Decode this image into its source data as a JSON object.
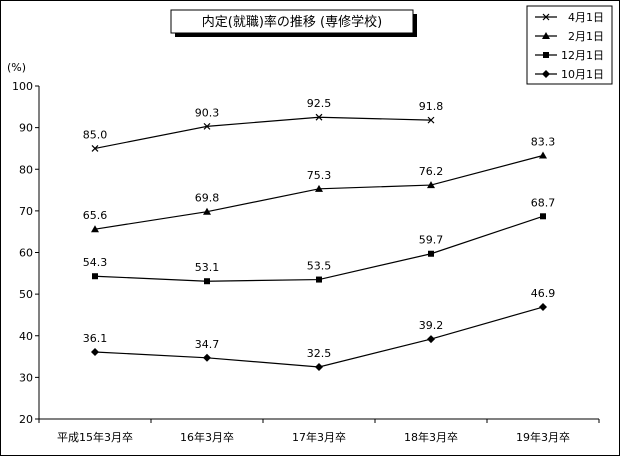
{
  "chart_data": {
    "type": "line",
    "title": "内定(就職)率の推移 (専修学校)",
    "y_unit": "(%)",
    "categories": [
      "平成15年3月卒",
      "16年3月卒",
      "17年3月卒",
      "18年3月卒",
      "19年3月卒"
    ],
    "ylim": [
      20,
      100
    ],
    "yticks": [
      20,
      30,
      40,
      50,
      60,
      70,
      80,
      90,
      100
    ],
    "grid": false,
    "legend_position": "top-right",
    "series": [
      {
        "name": "4月1日",
        "marker": "x",
        "values": [
          85.0,
          90.3,
          92.5,
          91.8,
          null
        ],
        "labels": [
          "85.0",
          "90.3",
          "92.5",
          "91.8",
          ""
        ]
      },
      {
        "name": "2月1日",
        "marker": "triangle",
        "values": [
          65.6,
          69.8,
          75.3,
          76.2,
          83.3
        ],
        "labels": [
          "65.6",
          "69.8",
          "75.3",
          "76.2",
          "83.3"
        ]
      },
      {
        "name": "12月1日",
        "marker": "square",
        "values": [
          54.3,
          53.1,
          53.5,
          59.7,
          68.7
        ],
        "labels": [
          "54.3",
          "53.1",
          "53.5",
          "59.7",
          "68.7"
        ]
      },
      {
        "name": "10月1日",
        "marker": "diamond",
        "values": [
          36.1,
          34.7,
          32.5,
          39.2,
          46.9
        ],
        "labels": [
          "36.1",
          "34.7",
          "32.5",
          "39.2",
          "46.9"
        ]
      }
    ],
    "colors": {
      "line": "#000000",
      "background": "#ffffff"
    }
  }
}
